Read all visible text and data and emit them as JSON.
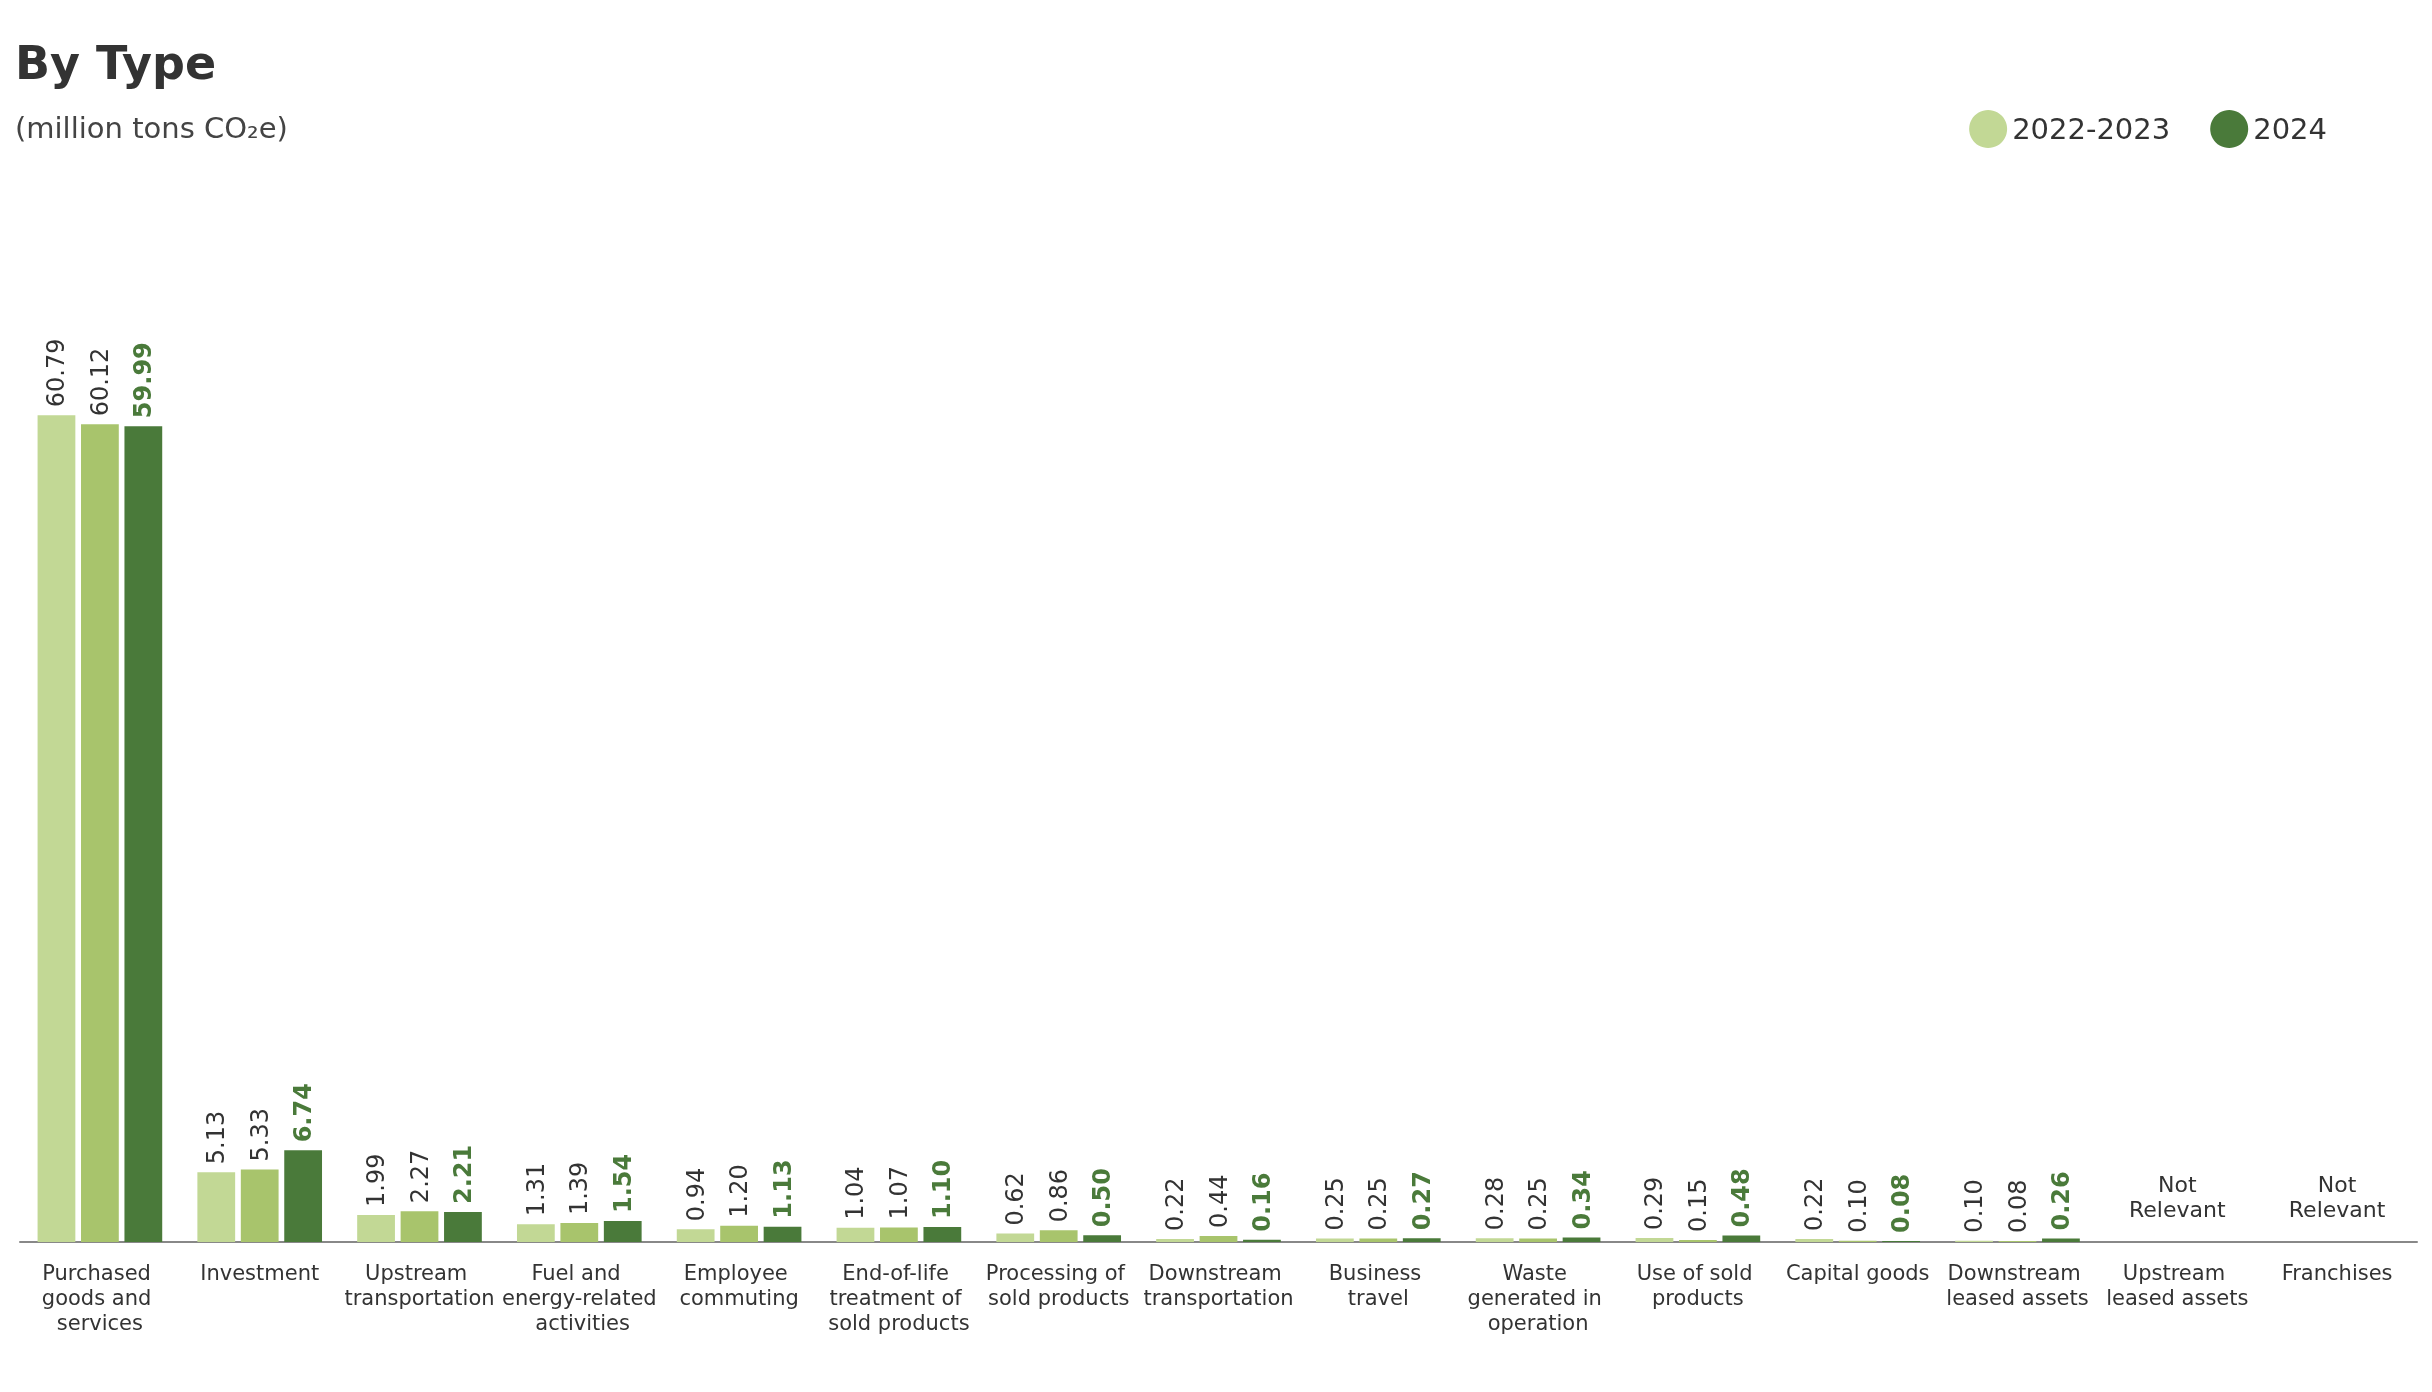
{
  "chart_data": {
    "type": "bar",
    "title": "By Type",
    "subtitle": "(million tons CO₂e)",
    "categories": [
      "Purchased goods and services",
      "Investment",
      "Upstream transportation",
      "Fuel and energy-related activities",
      "Employee commuting",
      "End-of-life treatment of sold products",
      "Processing of sold products",
      "Downstream transportation",
      "Business travel",
      "Waste generated in operation",
      "Use of sold products",
      "Capital goods",
      "Downstream leased assets",
      "Upstream leased assets",
      "Franchises"
    ],
    "series": [
      {
        "name": "2022-2023",
        "color": "#c2d895",
        "values": [
          60.79,
          5.13,
          1.99,
          1.31,
          0.94,
          1.04,
          0.62,
          0.22,
          0.25,
          0.28,
          0.29,
          0.22,
          0.1,
          null,
          null
        ],
        "value_labels": [
          "60.79",
          "5.13",
          "1.99",
          "1.31",
          "0.94",
          "1.04",
          "0.62",
          "0.22",
          "0.25",
          "0.28",
          "0.29",
          "0.22",
          "0.10",
          null,
          null
        ]
      },
      {
        "color": "#a8c46c",
        "values": [
          60.12,
          5.33,
          2.27,
          1.39,
          1.2,
          1.07,
          0.86,
          0.44,
          0.25,
          0.25,
          0.15,
          0.1,
          0.08,
          null,
          null
        ],
        "value_labels": [
          "60.12",
          "5.33",
          "2.27",
          "1.39",
          "1.20",
          "1.07",
          "0.86",
          "0.44",
          "0.25",
          "0.25",
          "0.15",
          "0.10",
          "0.08",
          null,
          null
        ]
      },
      {
        "name": "2024",
        "color": "#4a7a3a",
        "values": [
          59.99,
          6.74,
          2.21,
          1.54,
          1.13,
          1.1,
          0.5,
          0.16,
          0.27,
          0.34,
          0.48,
          0.08,
          0.26,
          null,
          null
        ],
        "value_labels": [
          "59.99",
          "6.74",
          "2.21",
          "1.54",
          "1.13",
          "1.10",
          "0.50",
          "0.16",
          "0.27",
          "0.34",
          "0.48",
          "0.08",
          "0.26",
          null,
          null
        ]
      }
    ],
    "annotations": [
      "Not Relevant",
      "Not Relevant"
    ],
    "legend": "top right"
  }
}
